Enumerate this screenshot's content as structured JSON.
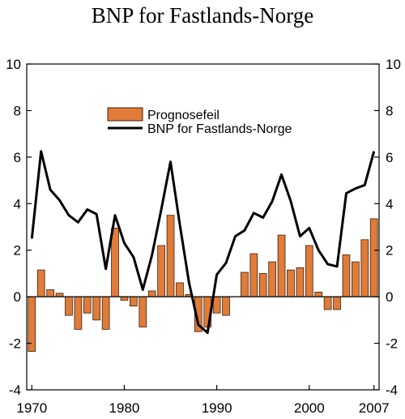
{
  "chart_data": {
    "type": "bar+line",
    "title": "BNP for Fastlands-Norge",
    "xlabel": "",
    "ylabel": "",
    "ylim": [
      -4,
      10
    ],
    "y_ticks": [
      "10",
      "8",
      "6",
      "4",
      "2",
      "0",
      "-2",
      "-4"
    ],
    "y_tick_values": [
      10,
      8,
      6,
      4,
      2,
      0,
      -2,
      -4
    ],
    "x_ticks": [
      "1970",
      "1980",
      "1990",
      "2000",
      "2007"
    ],
    "x_tick_values": [
      1970,
      1980,
      1990,
      2000,
      2007
    ],
    "grid": false,
    "legend_placement": "top-center",
    "colors": {
      "bar": "#E07B39",
      "bar_edge": "#3a2210",
      "line": "#000000"
    },
    "series": [
      {
        "name": "Prognosefeil",
        "type": "bar",
        "x": [
          1970,
          1971,
          1972,
          1973,
          1974,
          1975,
          1976,
          1977,
          1978,
          1979,
          1980,
          1981,
          1982,
          1983,
          1984,
          1985,
          1986,
          1987,
          1988,
          1989,
          1990,
          1991,
          1992,
          1993,
          1994,
          1995,
          1996,
          1997,
          1998,
          1999,
          2000,
          2001,
          2002,
          2003,
          2004,
          2005,
          2006,
          2007
        ],
        "values": [
          -2.35,
          1.15,
          0.3,
          0.15,
          -0.8,
          -1.4,
          -0.7,
          -1.0,
          -1.4,
          2.95,
          -0.15,
          -0.4,
          -1.3,
          0.25,
          2.2,
          3.5,
          0.6,
          0.1,
          -1.5,
          -1.3,
          -0.7,
          -0.8,
          0.0,
          1.05,
          1.85,
          1.0,
          1.5,
          2.65,
          1.15,
          1.25,
          2.2,
          0.2,
          -0.55,
          -0.55,
          1.8,
          1.5,
          2.45,
          3.35
        ]
      },
      {
        "name": "BNP for Fastlands-Norge",
        "type": "line",
        "x": [
          1970,
          1971,
          1972,
          1973,
          1974,
          1975,
          1976,
          1977,
          1978,
          1979,
          1980,
          1981,
          1982,
          1983,
          1984,
          1985,
          1986,
          1987,
          1988,
          1989,
          1990,
          1991,
          1992,
          1993,
          1994,
          1995,
          1996,
          1997,
          1998,
          1999,
          2000,
          2001,
          2002,
          2003,
          2004,
          2005,
          2006,
          2007
        ],
        "values": [
          2.5,
          6.25,
          4.6,
          4.15,
          3.5,
          3.2,
          3.75,
          3.55,
          1.2,
          3.5,
          2.3,
          1.7,
          0.3,
          1.8,
          3.75,
          5.8,
          3.1,
          0.6,
          -1.2,
          -1.55,
          0.95,
          1.45,
          2.6,
          2.85,
          3.6,
          3.4,
          4.1,
          5.25,
          4.1,
          2.6,
          2.95,
          2.0,
          1.4,
          1.3,
          4.45,
          4.65,
          4.8,
          6.25
        ]
      }
    ]
  }
}
